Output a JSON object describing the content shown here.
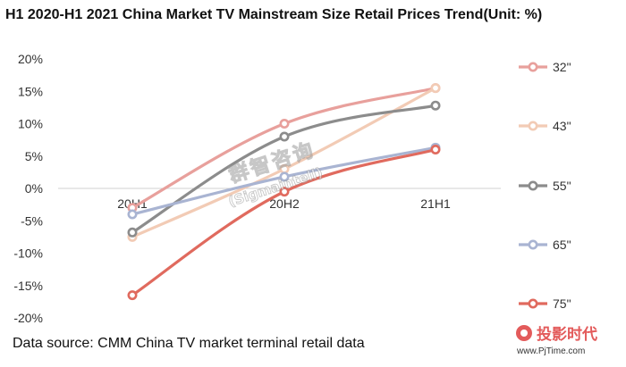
{
  "title": "H1 2020-H1 2021 China Market TV Mainstream Size Retail Prices Trend(Unit: %)",
  "source": "Data source: CMM China TV market terminal retail data",
  "watermark": {
    "cn": "群智咨询",
    "en": "(Sigmaintell)"
  },
  "logo": {
    "cn": "投影时代",
    "url": "www.PjTime.com"
  },
  "chart_data": {
    "type": "line",
    "x": [
      "20H1",
      "20H2",
      "21H1"
    ],
    "ylim": [
      -20,
      20
    ],
    "yticks": [
      20,
      15,
      10,
      5,
      0,
      -5,
      -10,
      -15,
      -20
    ],
    "ytick_labels": [
      "20%",
      "15%",
      "10%",
      "5%",
      "0%",
      "-5%",
      "-10%",
      "-15%",
      "-20%"
    ],
    "legend_position": "right",
    "series": [
      {
        "name": "32\"",
        "color": "#e8a09c",
        "values": [
          -3.0,
          10.0,
          15.5
        ]
      },
      {
        "name": "43\"",
        "color": "#f2cbb5",
        "values": [
          -7.5,
          3.0,
          15.5
        ]
      },
      {
        "name": "55\"",
        "color": "#8c8c8c",
        "values": [
          -6.8,
          8.0,
          12.8
        ]
      },
      {
        "name": "65\"",
        "color": "#a9b4d2",
        "values": [
          -4.0,
          1.8,
          6.3
        ]
      },
      {
        "name": "75\"",
        "color": "#e06a5e",
        "values": [
          -16.5,
          -0.5,
          6.0
        ]
      }
    ]
  }
}
